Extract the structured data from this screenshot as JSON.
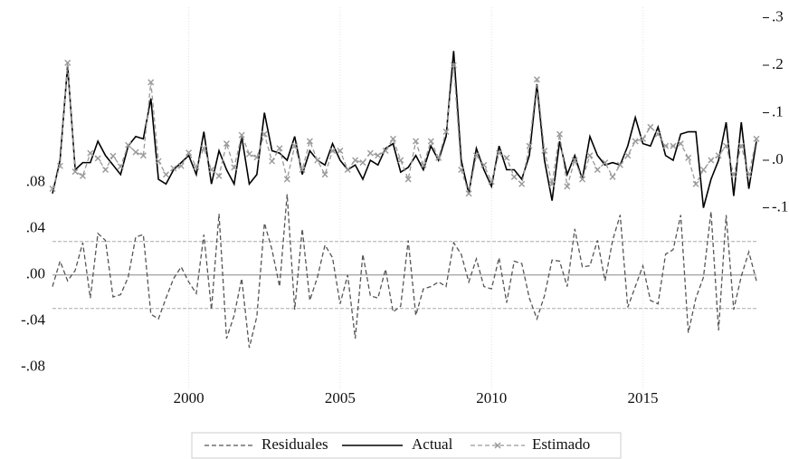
{
  "chart_data": {
    "type": "residual_actual_fitted",
    "x": [
      1995.5,
      1995.75,
      1996,
      1996.25,
      1996.5,
      1996.75,
      1997,
      1997.25,
      1997.5,
      1997.75,
      1998,
      1998.25,
      1998.5,
      1998.75,
      1999,
      1999.25,
      1999.5,
      1999.75,
      2000,
      2000.25,
      2000.5,
      2000.75,
      2001,
      2001.25,
      2001.5,
      2001.75,
      2002,
      2002.25,
      2002.5,
      2002.75,
      2003,
      2003.25,
      2003.5,
      2003.75,
      2004,
      2004.25,
      2004.5,
      2004.75,
      2005,
      2005.25,
      2005.5,
      2005.75,
      2006,
      2006.25,
      2006.5,
      2006.75,
      2007,
      2007.25,
      2007.5,
      2007.75,
      2008,
      2008.25,
      2008.5,
      2008.75,
      2009,
      2009.25,
      2009.5,
      2009.75,
      2010,
      2010.25,
      2010.5,
      2010.75,
      2011,
      2011.25,
      2011.5,
      2011.75,
      2012,
      2012.25,
      2012.5,
      2012.75,
      2013,
      2013.25,
      2013.5,
      2013.75,
      2014,
      2014.25,
      2014.5,
      2014.75,
      2015,
      2015.25,
      2015.5,
      2015.75,
      2016,
      2016.25,
      2016.5,
      2016.75,
      2017,
      2017.25,
      2017.5,
      2017.75,
      2018,
      2018.25,
      2018.5,
      2018.75
    ],
    "xlim": [
      1995.5,
      2018.75
    ],
    "xticks": [
      2000,
      2005,
      2010,
      2015
    ],
    "ylim": [
      -0.099,
      0.232
    ],
    "yticks": [
      {
        "value": -0.08,
        "label": "-.08"
      },
      {
        "value": -0.04,
        "label": "-.04"
      },
      {
        "value": 0,
        "label": ".00"
      },
      {
        "value": 0.04,
        "label": ".04"
      },
      {
        "value": 0.08,
        "label": ".08"
      }
    ],
    "y2lim": [
      -0.482,
      0.322
    ],
    "y2ticks": [
      {
        "value": -0.1,
        "label": "-.1"
      },
      {
        "value": 0,
        "label": ".0"
      },
      {
        "value": 0.1,
        "label": ".1"
      },
      {
        "value": 0.2,
        "label": ".2"
      },
      {
        "value": 0.3,
        "label": ".3"
      }
    ],
    "residual_bands": [
      0.029,
      -0.029
    ],
    "grid": true,
    "series": [
      {
        "name": "Residuales",
        "color": "#555555",
        "axis": "y",
        "values": [
          -0.01,
          0.012,
          -0.005,
          0.004,
          0.028,
          -0.02,
          0.036,
          0.03,
          -0.019,
          -0.017,
          -0.002,
          0.033,
          0.035,
          -0.034,
          -0.038,
          -0.02,
          -0.003,
          0.007,
          -0.006,
          -0.016,
          0.035,
          -0.03,
          0.053,
          -0.055,
          -0.035,
          -0.003,
          -0.063,
          -0.036,
          0.045,
          0.022,
          -0.01,
          0.07,
          -0.03,
          0.04,
          -0.022,
          -0.002,
          0.026,
          0.015,
          -0.025,
          0,
          -0.055,
          0.018,
          -0.018,
          -0.02,
          0.005,
          -0.032,
          -0.027,
          0.03,
          -0.035,
          -0.012,
          -0.01,
          -0.006,
          -0.01,
          0.028,
          0.018,
          -0.006,
          0.014,
          -0.01,
          -0.012,
          0.015,
          -0.024,
          0.012,
          0.01,
          -0.02,
          -0.038,
          -0.018,
          0.013,
          0.012,
          -0.01,
          0.04,
          0.007,
          0.008,
          0.03,
          -0.005,
          0.03,
          0.052,
          -0.028,
          -0.01,
          0.008,
          -0.022,
          -0.025,
          0.018,
          0.022,
          0.052,
          -0.05,
          -0.02,
          -0.002,
          0.055,
          -0.048,
          0.052,
          -0.03,
          -0.001,
          0.02,
          -0.005
        ]
      },
      {
        "name": "Actual",
        "color": "#000000",
        "axis": "y2",
        "values": [
          -0.07,
          0,
          0.2,
          -0.02,
          -0.005,
          -0.005,
          0.04,
          0.01,
          -0.01,
          -0.03,
          0.03,
          0.05,
          0.045,
          0.13,
          -0.04,
          -0.05,
          -0.02,
          -0.005,
          0.01,
          -0.03,
          0.06,
          -0.05,
          0.02,
          -0.02,
          -0.05,
          0.05,
          -0.05,
          -0.03,
          0.1,
          0.02,
          0.015,
          0,
          0.05,
          -0.03,
          0.02,
          0,
          -0.01,
          0.035,
          0,
          -0.02,
          -0.01,
          -0.04,
          0,
          -0.01,
          0.025,
          0.035,
          -0.025,
          -0.015,
          0.01,
          -0.02,
          0.03,
          0,
          0.05,
          0.23,
          0,
          -0.07,
          0.025,
          -0.02,
          -0.055,
          0.03,
          -0.02,
          -0.02,
          -0.04,
          0.01,
          0.16,
          0,
          -0.085,
          0.04,
          -0.03,
          0.01,
          -0.04,
          0.05,
          0.01,
          -0.01,
          -0.005,
          -0.01,
          0.03,
          0.09,
          0.035,
          0.03,
          0.07,
          0.01,
          0,
          0.055,
          0.06,
          0.06,
          -0.1,
          -0.04,
          0,
          0.08,
          -0.075,
          0.08,
          -0.06,
          0.04
        ]
      },
      {
        "name": "Estimado",
        "color": "#999999",
        "axis": "y2",
        "values": [
          -0.06,
          -0.012,
          0.205,
          -0.024,
          -0.033,
          0.015,
          0.004,
          -0.02,
          0.009,
          -0.013,
          0.032,
          0.017,
          0.01,
          0.164,
          -0.002,
          -0.03,
          -0.017,
          -0.012,
          0.016,
          -0.014,
          0.025,
          -0.02,
          -0.033,
          0.035,
          -0.015,
          0.053,
          0.013,
          0.006,
          0.055,
          -0.002,
          0.025,
          -0.04,
          0.03,
          -0.02,
          0.04,
          0,
          -0.03,
          0.02,
          0.02,
          -0.02,
          0,
          -0.005,
          0.015,
          0.01,
          0.02,
          0.045,
          0,
          -0.04,
          0.04,
          -0.01,
          0.04,
          0.005,
          0.06,
          0.2,
          -0.02,
          -0.07,
          0.01,
          -0.01,
          -0.045,
          0.015,
          0.005,
          -0.035,
          -0.05,
          0.03,
          0.17,
          0.02,
          -0.05,
          0.055,
          -0.055,
          0,
          -0.04,
          0.01,
          -0.02,
          -0.005,
          -0.035,
          -0.01,
          0.01,
          0.04,
          0.045,
          0.07,
          0.055,
          0.03,
          0.03,
          0.035,
          0.005,
          -0.05,
          -0.02,
          0,
          0.01,
          0.03,
          -0.03,
          0.03,
          -0.03,
          0.045
        ]
      }
    ]
  }
}
